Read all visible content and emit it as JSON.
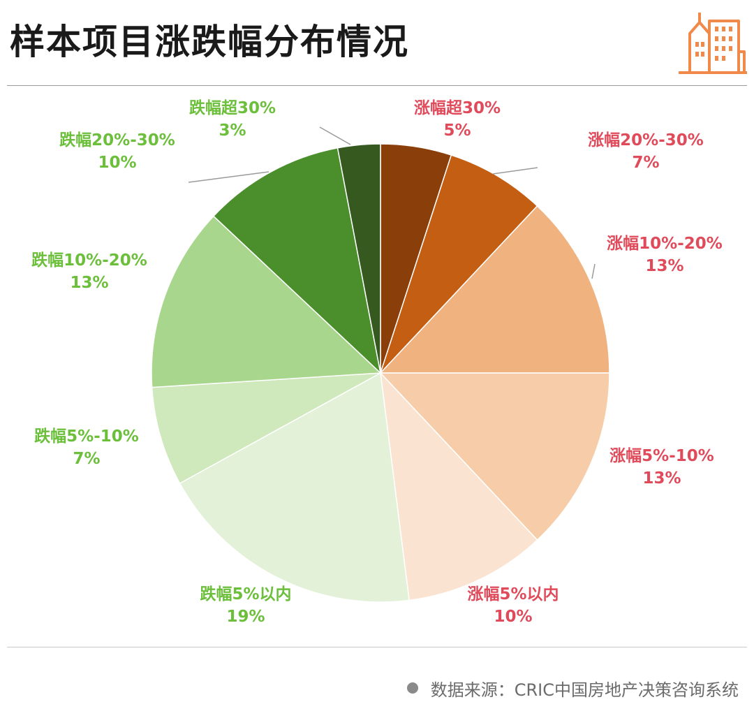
{
  "title": "样本项目涨跌幅分布情况",
  "footer": {
    "source": "数据来源：CRIC中国房地产决策咨询系统"
  },
  "colors": {
    "rise_label": "#e04b5b",
    "fall_label": "#6cbf3b",
    "leader": "#9a9a9a"
  },
  "chart_data": {
    "type": "pie",
    "start_angle_deg": 0,
    "direction": "clockwise",
    "slices": [
      {
        "label": "涨幅超30%",
        "value": 5,
        "value_text": "5%",
        "color": "#8a3f0a",
        "group": "rise"
      },
      {
        "label": "涨幅20%-30%",
        "value": 7,
        "value_text": "7%",
        "color": "#c45e13",
        "group": "rise"
      },
      {
        "label": "涨幅10%-20%",
        "value": 13,
        "value_text": "13%",
        "color": "#f0b27e",
        "group": "rise"
      },
      {
        "label": "涨幅5%-10%",
        "value": 13,
        "value_text": "13%",
        "color": "#f6cda8",
        "group": "rise"
      },
      {
        "label": "涨幅5%以内",
        "value": 10,
        "value_text": "10%",
        "color": "#fbe3d1",
        "group": "rise"
      },
      {
        "label": "跌幅5%以内",
        "value": 19,
        "value_text": "19%",
        "color": "#e2f1d8",
        "group": "fall"
      },
      {
        "label": "跌幅5%-10%",
        "value": 7,
        "value_text": "7%",
        "color": "#cfe8bc",
        "group": "fall"
      },
      {
        "label": "跌幅10%-20%",
        "value": 13,
        "value_text": "13%",
        "color": "#a8d68c",
        "group": "fall"
      },
      {
        "label": "跌幅20%-30%",
        "value": 10,
        "value_text": "10%",
        "color": "#4a8f2c",
        "group": "fall"
      },
      {
        "label": "跌幅超30%",
        "value": 3,
        "value_text": "3%",
        "color": "#36591f",
        "group": "fall"
      }
    ]
  }
}
